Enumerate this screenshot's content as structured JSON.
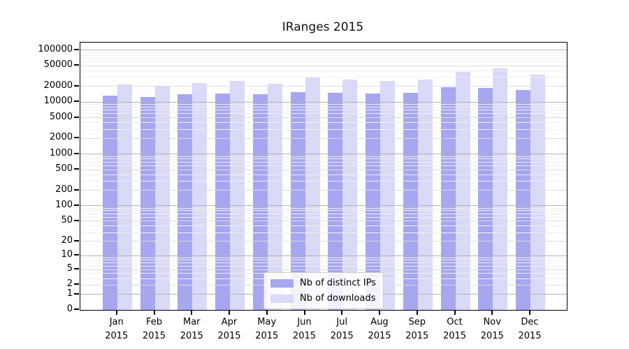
{
  "chart_data": {
    "type": "bar",
    "title": "IRanges 2015",
    "categories": [
      "Jan",
      "Feb",
      "Mar",
      "Apr",
      "May",
      "Jun",
      "Jul",
      "Aug",
      "Sep",
      "Oct",
      "Nov",
      "Dec"
    ],
    "category_year": "2015",
    "series": [
      {
        "name": "Nb of distinct IPs",
        "color": "#a6a6f1",
        "values": [
          13300,
          12500,
          14100,
          14600,
          14000,
          15800,
          15300,
          14600,
          15000,
          19400,
          19000,
          17300
        ]
      },
      {
        "name": "Nb of downloads",
        "color": "#d9d9f8",
        "values": [
          21800,
          19900,
          23600,
          25700,
          22700,
          30600,
          27000,
          25900,
          27500,
          38300,
          45100,
          33600
        ]
      }
    ],
    "y_axis": {
      "scale": "log1p",
      "max": 140000,
      "ticks": [
        0,
        1,
        2,
        5,
        10,
        20,
        50,
        100,
        200,
        500,
        1000,
        2000,
        5000,
        10000,
        20000,
        50000,
        100000
      ]
    },
    "xlabel": "",
    "ylabel": "",
    "grid": true,
    "legend_position": "bottom-center"
  },
  "colors": {
    "grid_power10": "#b3b3b3",
    "grid_labeled": "#dcdcdc",
    "grid_minor": "#efefef",
    "axis": "#000000",
    "background": "#ffffff"
  }
}
